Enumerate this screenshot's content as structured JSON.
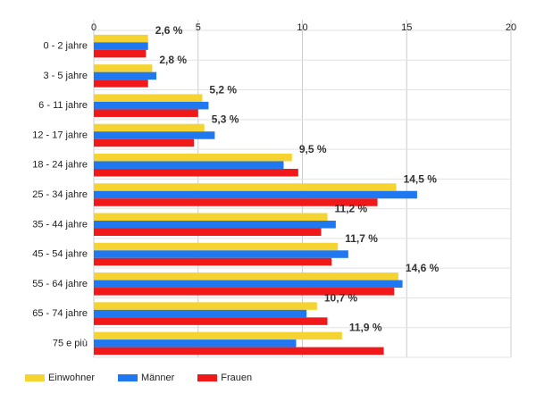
{
  "chart_data": {
    "type": "bar",
    "orientation": "horizontal",
    "categories": [
      "0 - 2 jahre",
      "3 - 5 jahre",
      "6 - 11 jahre",
      "12 - 17 jahre",
      "18 - 24 jahre",
      "25 - 34 jahre",
      "35 - 44 jahre",
      "45 - 54 jahre",
      "55 - 64 jahre",
      "65 - 74 jahre",
      "75 e più"
    ],
    "series": [
      {
        "name": "Einwohner",
        "color": "#f5d432",
        "values": [
          2.6,
          2.8,
          5.2,
          5.3,
          9.5,
          14.5,
          11.2,
          11.7,
          14.6,
          10.7,
          11.9
        ]
      },
      {
        "name": "Männer",
        "color": "#1f78f0",
        "values": [
          2.6,
          3.0,
          5.5,
          5.8,
          9.1,
          15.5,
          11.6,
          12.2,
          14.8,
          10.2,
          9.7
        ]
      },
      {
        "name": "Frauen",
        "color": "#f01818",
        "values": [
          2.5,
          2.6,
          5.0,
          4.8,
          9.8,
          13.6,
          10.9,
          11.4,
          14.4,
          11.2,
          13.9
        ]
      }
    ],
    "data_labels": [
      "2,6 %",
      "2,8 %",
      "5,2 %",
      "5,3 %",
      "9,5 %",
      "14,5 %",
      "11,2 %",
      "11,7 %",
      "14,6 %",
      "10,7 %",
      "11,9 %"
    ],
    "xlim": [
      0,
      20
    ],
    "xticks": [
      0,
      5,
      10,
      15,
      20
    ],
    "grid": true,
    "legend_position": "bottom-left"
  }
}
